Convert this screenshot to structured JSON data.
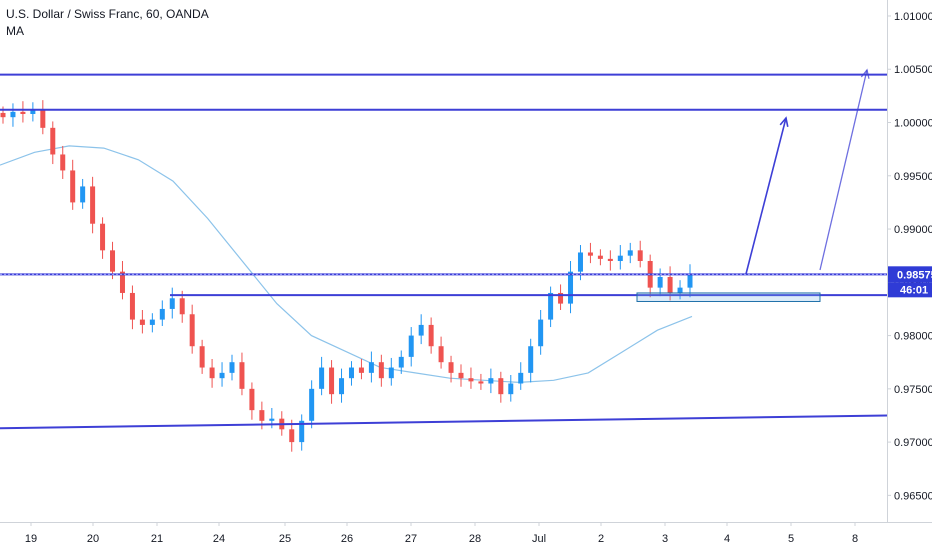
{
  "legend": {
    "title": "U.S. Dollar / Swiss Franc, 60, OANDA",
    "indicator": "MA"
  },
  "price_badge": {
    "price": "0.98575",
    "countdown": "46:01"
  },
  "colors": {
    "up": "#26a69a",
    "candle_up": "#2196f3",
    "candle_down": "#ef5350",
    "ma": "#8cc3ea",
    "drawing": "#3d3fd6",
    "zone": "#1e6fa8",
    "badge_price": "#2f3bd6",
    "badge_timer": "#2f3bd6"
  },
  "chart_data": {
    "type": "line",
    "title": "U.S. Dollar / Swiss Franc, 60, OANDA",
    "ylim": [
      0.9625,
      1.0115
    ],
    "y_ticks": [
      "1.01000",
      "1.00500",
      "1.00000",
      "0.99500",
      "0.99000",
      "0.98500",
      "0.98000",
      "0.97500",
      "0.97000",
      "0.96500"
    ],
    "x_ticks": [
      "19",
      "20",
      "21",
      "24",
      "25",
      "26",
      "27",
      "28",
      "Jul",
      "2",
      "3",
      "4",
      "5",
      "8"
    ],
    "series": [
      {
        "values": [
          1.0005,
          1.001,
          1.0008,
          1.0012,
          0.9995,
          0.997,
          0.9955,
          0.9925,
          0.994,
          0.9905,
          0.988,
          0.986,
          0.984,
          0.9815,
          0.981,
          0.9815,
          0.9825,
          0.9835,
          0.982,
          0.979,
          0.977,
          0.976,
          0.9765,
          0.9775,
          0.975,
          0.973,
          0.972,
          0.9722,
          0.9712,
          0.97,
          0.972,
          0.975,
          0.977,
          0.9745,
          0.976,
          0.977,
          0.9765,
          0.9775,
          0.976,
          0.977,
          0.978,
          0.98,
          0.981,
          0.979,
          0.9775,
          0.9765,
          0.976,
          0.9757,
          0.9755,
          0.976,
          0.9745,
          0.9755,
          0.9765,
          0.979,
          0.9815,
          0.984,
          0.983,
          0.986,
          0.9878,
          0.9875,
          0.9872,
          0.987,
          0.9875,
          0.988,
          0.987,
          0.9845,
          0.9855,
          0.984,
          0.9845,
          0.9858
        ]
      },
      {
        "name": "MA",
        "values": [
          0.996,
          0.9972,
          0.9978,
          0.9976,
          0.9965,
          0.9945,
          0.991,
          0.987,
          0.983,
          0.98,
          0.9785,
          0.977,
          0.9765,
          0.976,
          0.9758,
          0.9756,
          0.9758,
          0.9765,
          0.9785,
          0.9805,
          0.9818
        ]
      }
    ],
    "horizontal_levels": [
      1.0045,
      1.0012,
      0.98575,
      0.9838
    ],
    "trendline": [
      0.9713,
      0.9725
    ],
    "zone": [
      0.984,
      0.9832
    ]
  }
}
